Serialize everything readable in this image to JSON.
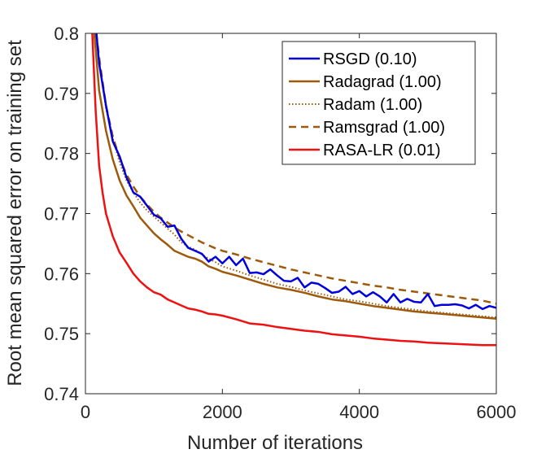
{
  "chart_data": {
    "type": "line",
    "xlabel": "Number of iterations",
    "ylabel": "Root mean squared error on training set",
    "xlim": [
      0,
      6000
    ],
    "ylim": [
      0.74,
      0.8
    ],
    "xticks": [
      0,
      2000,
      4000,
      6000
    ],
    "xtick_labels": [
      "0",
      "2000",
      "4000",
      "6000"
    ],
    "yticks": [
      0.74,
      0.75,
      0.76,
      0.77,
      0.78,
      0.79,
      0.8
    ],
    "ytick_labels": [
      "0.74",
      "0.75",
      "0.76",
      "0.77",
      "0.78",
      "0.79",
      "0.8"
    ],
    "grid": false,
    "legend_position": "top-right",
    "series": [
      {
        "name": "RSGD (0.10)",
        "color": "#0000dd",
        "style": "solid",
        "points": [
          [
            160,
            0.8
          ],
          [
            200,
            0.795
          ],
          [
            300,
            0.788
          ],
          [
            400,
            0.782
          ],
          [
            500,
            0.7795
          ],
          [
            600,
            0.776
          ],
          [
            700,
            0.7735
          ],
          [
            800,
            0.7728
          ],
          [
            900,
            0.7713
          ],
          [
            1000,
            0.7698
          ],
          [
            1100,
            0.7692
          ],
          [
            1200,
            0.7678
          ],
          [
            1300,
            0.768
          ],
          [
            1400,
            0.7658
          ],
          [
            1500,
            0.7643
          ],
          [
            1600,
            0.7638
          ],
          [
            1700,
            0.7633
          ],
          [
            1800,
            0.762
          ],
          [
            1900,
            0.7628
          ],
          [
            2000,
            0.7617
          ],
          [
            2100,
            0.7628
          ],
          [
            2200,
            0.7614
          ],
          [
            2300,
            0.7625
          ],
          [
            2400,
            0.7601
          ],
          [
            2500,
            0.7602
          ],
          [
            2600,
            0.7599
          ],
          [
            2700,
            0.7607
          ],
          [
            2800,
            0.7597
          ],
          [
            2900,
            0.7588
          ],
          [
            3000,
            0.7587
          ],
          [
            3100,
            0.7593
          ],
          [
            3200,
            0.7577
          ],
          [
            3300,
            0.7585
          ],
          [
            3400,
            0.7583
          ],
          [
            3500,
            0.7576
          ],
          [
            3600,
            0.7568
          ],
          [
            3700,
            0.757
          ],
          [
            3800,
            0.7578
          ],
          [
            3900,
            0.7566
          ],
          [
            4000,
            0.7571
          ],
          [
            4100,
            0.7562
          ],
          [
            4200,
            0.7569
          ],
          [
            4300,
            0.7562
          ],
          [
            4400,
            0.7552
          ],
          [
            4500,
            0.7566
          ],
          [
            4600,
            0.7552
          ],
          [
            4700,
            0.7558
          ],
          [
            4800,
            0.7553
          ],
          [
            4900,
            0.7552
          ],
          [
            5000,
            0.7566
          ],
          [
            5100,
            0.7546
          ],
          [
            5200,
            0.7548
          ],
          [
            5300,
            0.7548
          ],
          [
            5400,
            0.7549
          ],
          [
            5500,
            0.7547
          ],
          [
            5600,
            0.7542
          ],
          [
            5700,
            0.7548
          ],
          [
            5800,
            0.7541
          ],
          [
            5900,
            0.7546
          ],
          [
            6000,
            0.7543
          ]
        ]
      },
      {
        "name": "Radagrad (1.00)",
        "color": "#9e5a0c",
        "style": "solid",
        "points": [
          [
            130,
            0.8
          ],
          [
            200,
            0.7905
          ],
          [
            300,
            0.7838
          ],
          [
            400,
            0.779
          ],
          [
            500,
            0.7755
          ],
          [
            600,
            0.773
          ],
          [
            700,
            0.7712
          ],
          [
            800,
            0.7693
          ],
          [
            900,
            0.768
          ],
          [
            1000,
            0.7667
          ],
          [
            1100,
            0.7657
          ],
          [
            1200,
            0.7648
          ],
          [
            1300,
            0.7638
          ],
          [
            1400,
            0.7633
          ],
          [
            1500,
            0.7628
          ],
          [
            1600,
            0.7625
          ],
          [
            1700,
            0.762
          ],
          [
            1800,
            0.7612
          ],
          [
            1900,
            0.7608
          ],
          [
            2000,
            0.7603
          ],
          [
            2200,
            0.7597
          ],
          [
            2400,
            0.759
          ],
          [
            2600,
            0.7583
          ],
          [
            2800,
            0.7577
          ],
          [
            3000,
            0.7573
          ],
          [
            3200,
            0.7568
          ],
          [
            3400,
            0.7562
          ],
          [
            3600,
            0.7557
          ],
          [
            3800,
            0.7554
          ],
          [
            4000,
            0.755
          ],
          [
            4200,
            0.7546
          ],
          [
            4400,
            0.7543
          ],
          [
            4600,
            0.754
          ],
          [
            4800,
            0.7537
          ],
          [
            5000,
            0.7535
          ],
          [
            5200,
            0.7533
          ],
          [
            5400,
            0.7531
          ],
          [
            5600,
            0.7529
          ],
          [
            5800,
            0.7527
          ],
          [
            6000,
            0.7525
          ]
        ]
      },
      {
        "name": "Radam (1.00)",
        "color": "#9e5a0c",
        "style": "dotted",
        "points": [
          [
            150,
            0.8
          ],
          [
            200,
            0.7955
          ],
          [
            300,
            0.7875
          ],
          [
            400,
            0.7825
          ],
          [
            500,
            0.7785
          ],
          [
            600,
            0.7755
          ],
          [
            700,
            0.7735
          ],
          [
            800,
            0.7718
          ],
          [
            900,
            0.7705
          ],
          [
            1000,
            0.7695
          ],
          [
            1100,
            0.7685
          ],
          [
            1200,
            0.7675
          ],
          [
            1300,
            0.7665
          ],
          [
            1400,
            0.7652
          ],
          [
            1500,
            0.7645
          ],
          [
            1600,
            0.764
          ],
          [
            1700,
            0.7632
          ],
          [
            1800,
            0.7625
          ],
          [
            1900,
            0.7619
          ],
          [
            2000,
            0.7612
          ],
          [
            2200,
            0.7605
          ],
          [
            2400,
            0.7597
          ],
          [
            2600,
            0.759
          ],
          [
            2800,
            0.7583
          ],
          [
            3000,
            0.7578
          ],
          [
            3200,
            0.7572
          ],
          [
            3400,
            0.7567
          ],
          [
            3600,
            0.7562
          ],
          [
            3800,
            0.7557
          ],
          [
            4000,
            0.7554
          ],
          [
            4200,
            0.755
          ],
          [
            4400,
            0.7546
          ],
          [
            4600,
            0.7543
          ],
          [
            4800,
            0.754
          ],
          [
            5000,
            0.7537
          ],
          [
            5200,
            0.7535
          ],
          [
            5400,
            0.7533
          ],
          [
            5600,
            0.7531
          ],
          [
            5800,
            0.7529
          ],
          [
            6000,
            0.7527
          ]
        ]
      },
      {
        "name": "Ramsgrad (1.00)",
        "color": "#9e5a0c",
        "style": "dashed",
        "points": [
          [
            160,
            0.8
          ],
          [
            200,
            0.796
          ],
          [
            300,
            0.788
          ],
          [
            400,
            0.7828
          ],
          [
            500,
            0.7792
          ],
          [
            600,
            0.7765
          ],
          [
            700,
            0.7745
          ],
          [
            800,
            0.7728
          ],
          [
            900,
            0.7715
          ],
          [
            1000,
            0.7703
          ],
          [
            1100,
            0.7693
          ],
          [
            1200,
            0.7685
          ],
          [
            1300,
            0.7677
          ],
          [
            1400,
            0.767
          ],
          [
            1500,
            0.7664
          ],
          [
            1600,
            0.7658
          ],
          [
            1700,
            0.7652
          ],
          [
            1800,
            0.7647
          ],
          [
            1900,
            0.7642
          ],
          [
            2000,
            0.7638
          ],
          [
            2200,
            0.7632
          ],
          [
            2400,
            0.7625
          ],
          [
            2600,
            0.7619
          ],
          [
            2800,
            0.7613
          ],
          [
            3000,
            0.7607
          ],
          [
            3200,
            0.7602
          ],
          [
            3400,
            0.7597
          ],
          [
            3600,
            0.7592
          ],
          [
            3800,
            0.7588
          ],
          [
            4000,
            0.7584
          ],
          [
            4200,
            0.758
          ],
          [
            4400,
            0.7577
          ],
          [
            4600,
            0.7573
          ],
          [
            4800,
            0.757
          ],
          [
            5000,
            0.7567
          ],
          [
            5200,
            0.7564
          ],
          [
            5400,
            0.7561
          ],
          [
            5600,
            0.7558
          ],
          [
            5800,
            0.7555
          ],
          [
            6000,
            0.755
          ]
        ]
      },
      {
        "name": "RASA-LR (0.01)",
        "color": "#ee1111",
        "style": "solid",
        "points": [
          [
            100,
            0.8
          ],
          [
            150,
            0.787
          ],
          [
            200,
            0.778
          ],
          [
            250,
            0.7735
          ],
          [
            300,
            0.77
          ],
          [
            400,
            0.7662
          ],
          [
            500,
            0.7635
          ],
          [
            600,
            0.7618
          ],
          [
            700,
            0.76
          ],
          [
            800,
            0.7587
          ],
          [
            900,
            0.7577
          ],
          [
            1000,
            0.7569
          ],
          [
            1100,
            0.7565
          ],
          [
            1200,
            0.7557
          ],
          [
            1300,
            0.7552
          ],
          [
            1400,
            0.7547
          ],
          [
            1500,
            0.7542
          ],
          [
            1600,
            0.754
          ],
          [
            1700,
            0.7537
          ],
          [
            1800,
            0.7533
          ],
          [
            1900,
            0.7532
          ],
          [
            2000,
            0.753
          ],
          [
            2200,
            0.7524
          ],
          [
            2400,
            0.7517
          ],
          [
            2600,
            0.7515
          ],
          [
            2800,
            0.7511
          ],
          [
            3000,
            0.7508
          ],
          [
            3200,
            0.7505
          ],
          [
            3400,
            0.7503
          ],
          [
            3600,
            0.7499
          ],
          [
            3800,
            0.7497
          ],
          [
            4000,
            0.7495
          ],
          [
            4200,
            0.7492
          ],
          [
            4400,
            0.749
          ],
          [
            4600,
            0.7488
          ],
          [
            4800,
            0.7487
          ],
          [
            5000,
            0.7485
          ],
          [
            5200,
            0.7484
          ],
          [
            5400,
            0.7483
          ],
          [
            5600,
            0.7482
          ],
          [
            5800,
            0.7481
          ],
          [
            6000,
            0.7481
          ]
        ]
      }
    ]
  }
}
